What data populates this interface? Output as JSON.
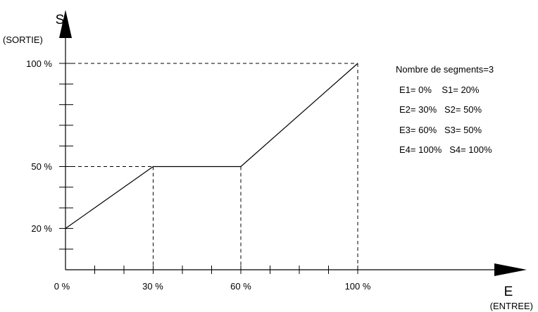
{
  "chart_data": {
    "type": "line",
    "title": "",
    "y_axis": {
      "letter": "S",
      "caption": "(SORTIE)"
    },
    "x_axis": {
      "letter": "E",
      "caption": "(ENTREE)"
    },
    "x_ticks": [
      "0 %",
      "30 %",
      "60 %",
      "100 %"
    ],
    "y_ticks": [
      "20 %",
      "50 %",
      "100 %"
    ],
    "x": [
      0,
      30,
      60,
      100
    ],
    "y": [
      20,
      50,
      50,
      100
    ],
    "xlim": [
      0,
      100
    ],
    "ylim": [
      0,
      100
    ],
    "legend": {
      "heading": "Nombre de segments=3",
      "lines": [
        "E1= 0%    S1= 20%",
        "E2= 30%   S2= 50%",
        "E3= 60%   S3= 50%",
        "E4= 100%   S4= 100%"
      ]
    }
  }
}
